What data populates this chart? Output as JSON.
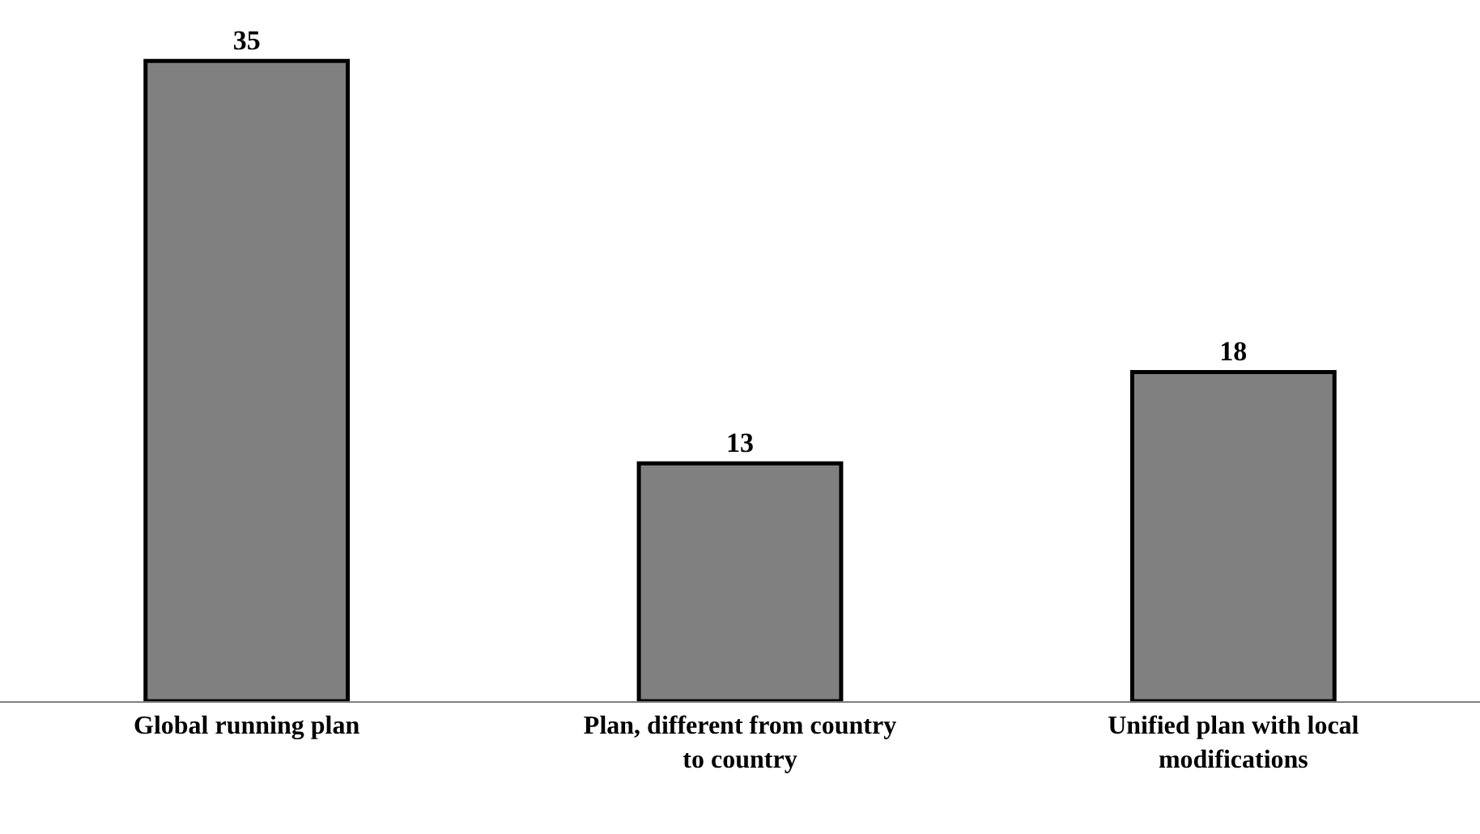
{
  "chart_data": {
    "type": "bar",
    "categories": [
      "Global running plan",
      "Plan, different from country to country",
      "Unified plan with local modifications"
    ],
    "values": [
      35,
      13,
      18
    ],
    "color": "#808080",
    "data_labels": true,
    "tick_labels": "x"
  }
}
